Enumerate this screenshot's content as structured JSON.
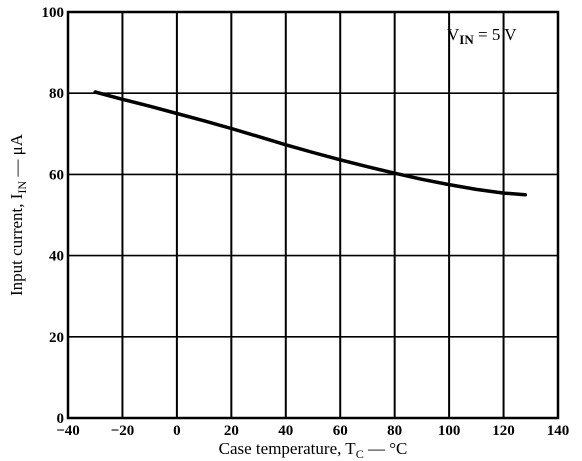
{
  "chart_data": {
    "type": "line",
    "title": "",
    "xlabel": "Case temperature, T",
    "xlabel_sub": "C",
    "xlabel_unit": " — °C",
    "ylabel": "Input current, I",
    "ylabel_sub": "IN",
    "ylabel_unit": " — μA",
    "xlim": [
      -40,
      140
    ],
    "ylim": [
      0,
      100
    ],
    "xticks": [
      -40,
      -20,
      0,
      20,
      40,
      60,
      80,
      100,
      120,
      140
    ],
    "yticks": [
      0,
      20,
      40,
      60,
      80,
      100
    ],
    "grid": true,
    "annotation": {
      "main": "V",
      "sub": "IN",
      "tail": " = 5 V"
    },
    "series": [
      {
        "x": [
          -30,
          -20,
          -10,
          0,
          10,
          20,
          30,
          40,
          50,
          60,
          70,
          80,
          90,
          100,
          110,
          120,
          128
        ],
        "y": [
          80.3,
          78.5,
          76.8,
          75.0,
          73.2,
          71.3,
          69.3,
          67.3,
          65.4,
          63.6,
          61.9,
          60.3,
          58.8,
          57.5,
          56.3,
          55.4,
          55.0
        ]
      }
    ]
  }
}
